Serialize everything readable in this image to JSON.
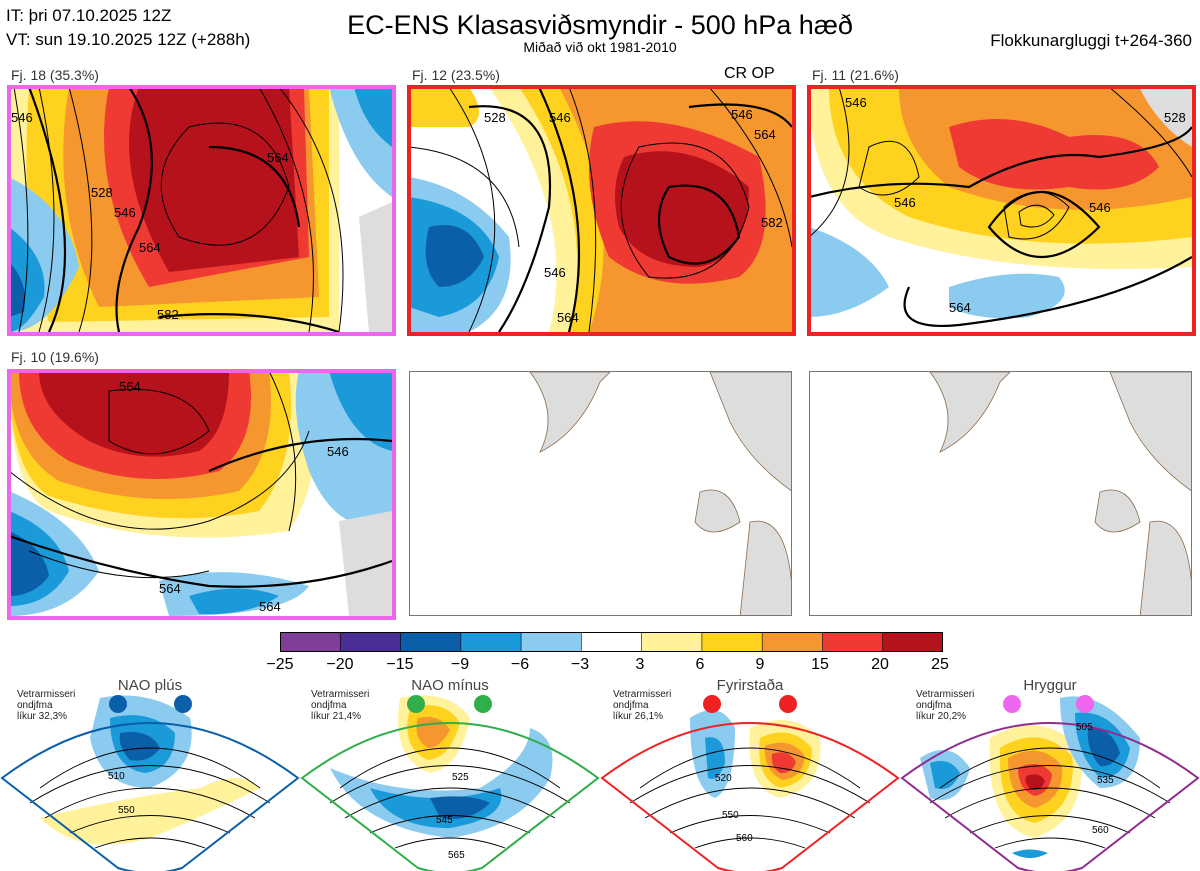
{
  "header": {
    "it_line": "IT: þri 07.10.2025 12Z",
    "vt_line": "VT: sun 19.10.2025 12Z  (+288h)",
    "title": "EC-ENS Klasasviðsmyndir - 500 hPa hæð",
    "subtitle": "Miðað við okt 1981-2010",
    "window": "Flokkunargluggi t+264-360"
  },
  "panels": [
    {
      "label": "Fj. 18 (35.3%)",
      "frame_color": "#ee66ee",
      "contours": [
        "546",
        "528",
        "546",
        "564",
        "564",
        "582"
      ]
    },
    {
      "label": "Fj. 12 (23.5%)",
      "frame_color": "#ee2222",
      "extra": "CR OP",
      "contours": [
        "528",
        "546",
        "546",
        "564",
        "582",
        "546",
        "564"
      ]
    },
    {
      "label": "Fj. 11 (21.6%)",
      "frame_color": "#ee2222",
      "contours": [
        "546",
        "546",
        "546",
        "564",
        "528"
      ]
    },
    {
      "label": "Fj. 10 (19.6%)",
      "frame_color": "#ee66ee",
      "contours": [
        "564",
        "546",
        "564",
        "564"
      ]
    }
  ],
  "colorbar": {
    "ticks": [
      "−25",
      "−20",
      "−15",
      "−9",
      "−6",
      "−3",
      "3",
      "6",
      "9",
      "15",
      "20",
      "25"
    ],
    "colors": [
      "#7f3f98",
      "#4b2e93",
      "#0b5fa8",
      "#1a9ad9",
      "#8ccbf0",
      "#ffffff",
      "#fff29a",
      "#ffd21f",
      "#f5962f",
      "#ee3a32",
      "#b5121b"
    ]
  },
  "regimes": [
    {
      "name": "NAO plús",
      "note": [
        "Vetrarmisseri",
        "ondjfma",
        "líkur 32,3%"
      ],
      "color": "#0b5fa8",
      "contours": [
        "510",
        "550"
      ]
    },
    {
      "name": "NAO mínus",
      "note": [
        "Vetrarmisseri",
        "ondjfma",
        "líkur 21,4%"
      ],
      "color": "#2fae4a",
      "contours": [
        "525",
        "545",
        "565"
      ]
    },
    {
      "name": "Fyrirstaða",
      "note": [
        "Vetrarmisseri",
        "ondjfma",
        "líkur 26,1%"
      ],
      "color": "#ee2222",
      "contours": [
        "520",
        "550",
        "560"
      ]
    },
    {
      "name": "Hryggur",
      "note": [
        "Vetrarmisseri",
        "ondjfma",
        "líkur 20,2%"
      ],
      "color": "#ee66ee",
      "contours": [
        "505",
        "535",
        "560"
      ]
    }
  ]
}
